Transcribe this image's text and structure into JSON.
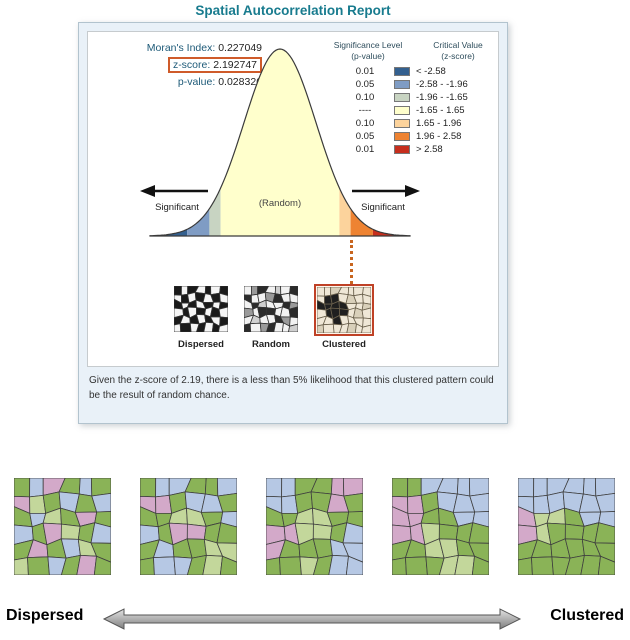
{
  "report": {
    "title": "Spatial Autocorrelation Report",
    "stats": {
      "morans_label": "Moran's Index:",
      "morans_value": "0.227049",
      "zscore_label": "z-score:",
      "zscore_value": "2.192747",
      "pvalue_label": "p-value:",
      "pvalue_value": "0.028326"
    },
    "curve": {
      "random_label": "(Random)",
      "significant_left": "Significant",
      "significant_right": "Significant"
    },
    "legend": {
      "sig_header": "Significance Level",
      "sig_subheader": "(p-value)",
      "crit_header": "Critical Value",
      "crit_subheader": "(z-score)",
      "rows": [
        {
          "p": "0.01",
          "color": "#33608f",
          "z": "< -2.58"
        },
        {
          "p": "0.05",
          "color": "#7f9cc4",
          "z": "-2.58 - -1.96"
        },
        {
          "p": "0.10",
          "color": "#c8d4c2",
          "z": "-1.96 - -1.65"
        },
        {
          "p": "----",
          "color": "#ffffcc",
          "z": "-1.65 - 1.65"
        },
        {
          "p": "0.10",
          "color": "#fcd39c",
          "z": "1.65 - 1.96"
        },
        {
          "p": "0.05",
          "color": "#ee8332",
          "z": "1.96 - 2.58"
        },
        {
          "p": "0.01",
          "color": "#c62e1d",
          "z": "> 2.58"
        }
      ]
    },
    "thumbnails": [
      {
        "label": "Dispersed"
      },
      {
        "label": "Random"
      },
      {
        "label": "Clustered"
      }
    ],
    "caption": "Given the z-score of 2.19, there is a less than 5% likelihood that this clustered pattern could be the result of random chance."
  },
  "scale": {
    "left_label": "Dispersed",
    "right_label": "Clustered"
  },
  "colors": {
    "title": "#187b8e",
    "zscore_box_border": "#cf5b2a",
    "dotted_line": "#c8651f",
    "clustered_thumb_border": "#bf4126",
    "map_palette": [
      "#8ab357",
      "#c3d79b",
      "#b6c8e4",
      "#d3a9c9"
    ],
    "thumb_dispersed_palette": [
      "#1a1a1a",
      "#f5f5f5",
      "#9a9a9a",
      "#d9d9d9"
    ],
    "thumb_random_palette": [
      "#2b2b2b",
      "#f2f2f2",
      "#9a9a9a",
      "#cfcfcf"
    ],
    "thumb_clustered_palette": [
      "#1f1f1f",
      "#efe7d6",
      "#d9d0ba",
      "#b8ae98"
    ]
  }
}
